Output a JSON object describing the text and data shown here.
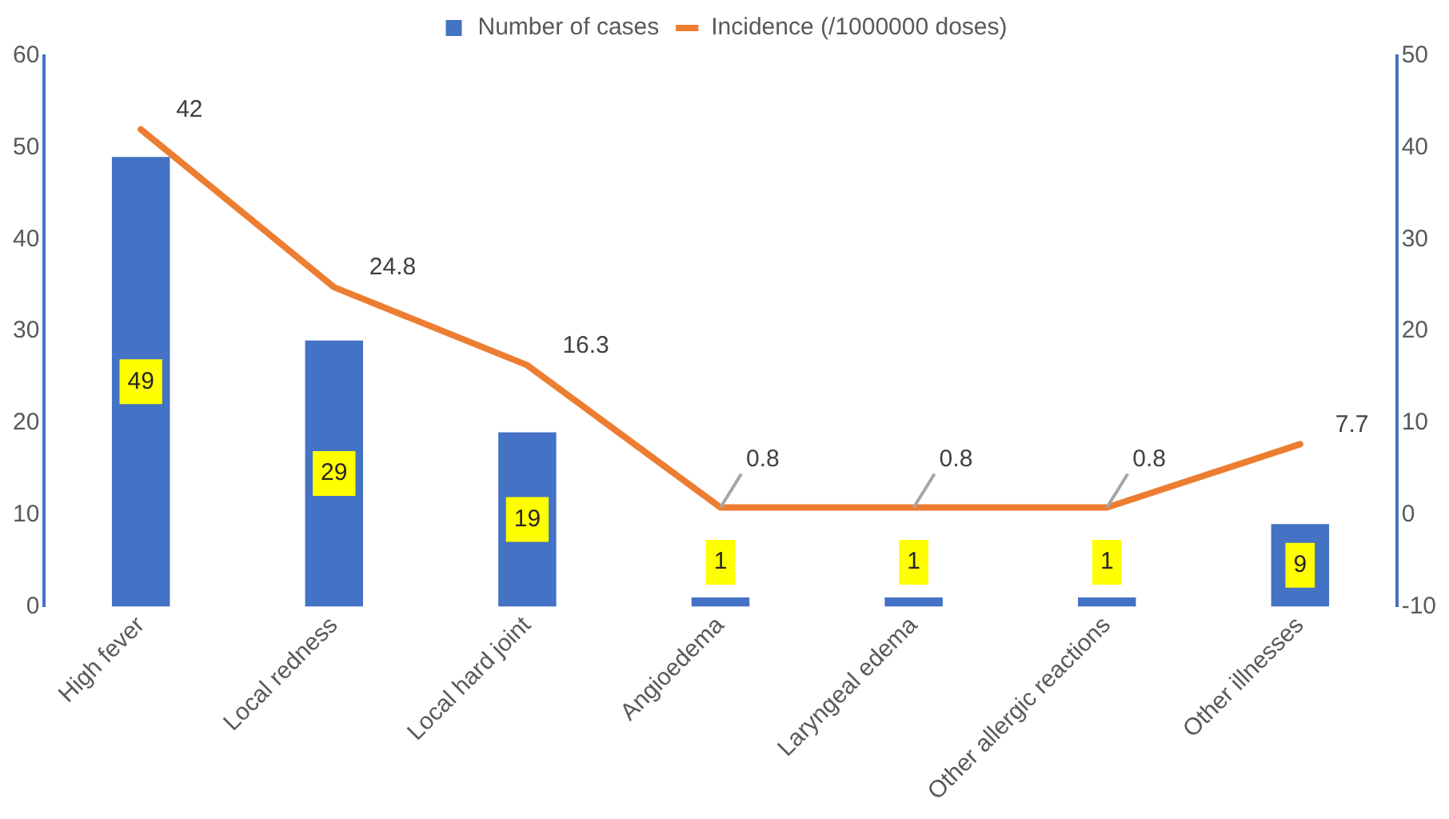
{
  "chart_data": {
    "type": "bar",
    "categories": [
      "High fever",
      "Local redness",
      "Local hard joint",
      "Angioedema",
      "Laryngeal edema",
      "Other allergic reactions",
      "Other illnesses"
    ],
    "series": [
      {
        "name": "Number of cases",
        "color": "#4472c4",
        "values": [
          49,
          29,
          19,
          1,
          1,
          1,
          9
        ]
      },
      {
        "name": "Incidence (/1000000 doses)",
        "type": "line",
        "axis": "y2",
        "color": "#ed7d31",
        "values": [
          42,
          24.8,
          16.3,
          0.8,
          0.8,
          0.8,
          7.7
        ]
      }
    ],
    "ylim": [
      0,
      60
    ],
    "yticks": [
      0,
      10,
      20,
      30,
      40,
      50,
      60
    ],
    "y2lim": [
      -10,
      50
    ],
    "y2ticks": [
      -10,
      0,
      10,
      20,
      30,
      40,
      50
    ],
    "data_labels": true,
    "legend": "top",
    "grid": false,
    "marker": "none",
    "line_style": "solid"
  }
}
